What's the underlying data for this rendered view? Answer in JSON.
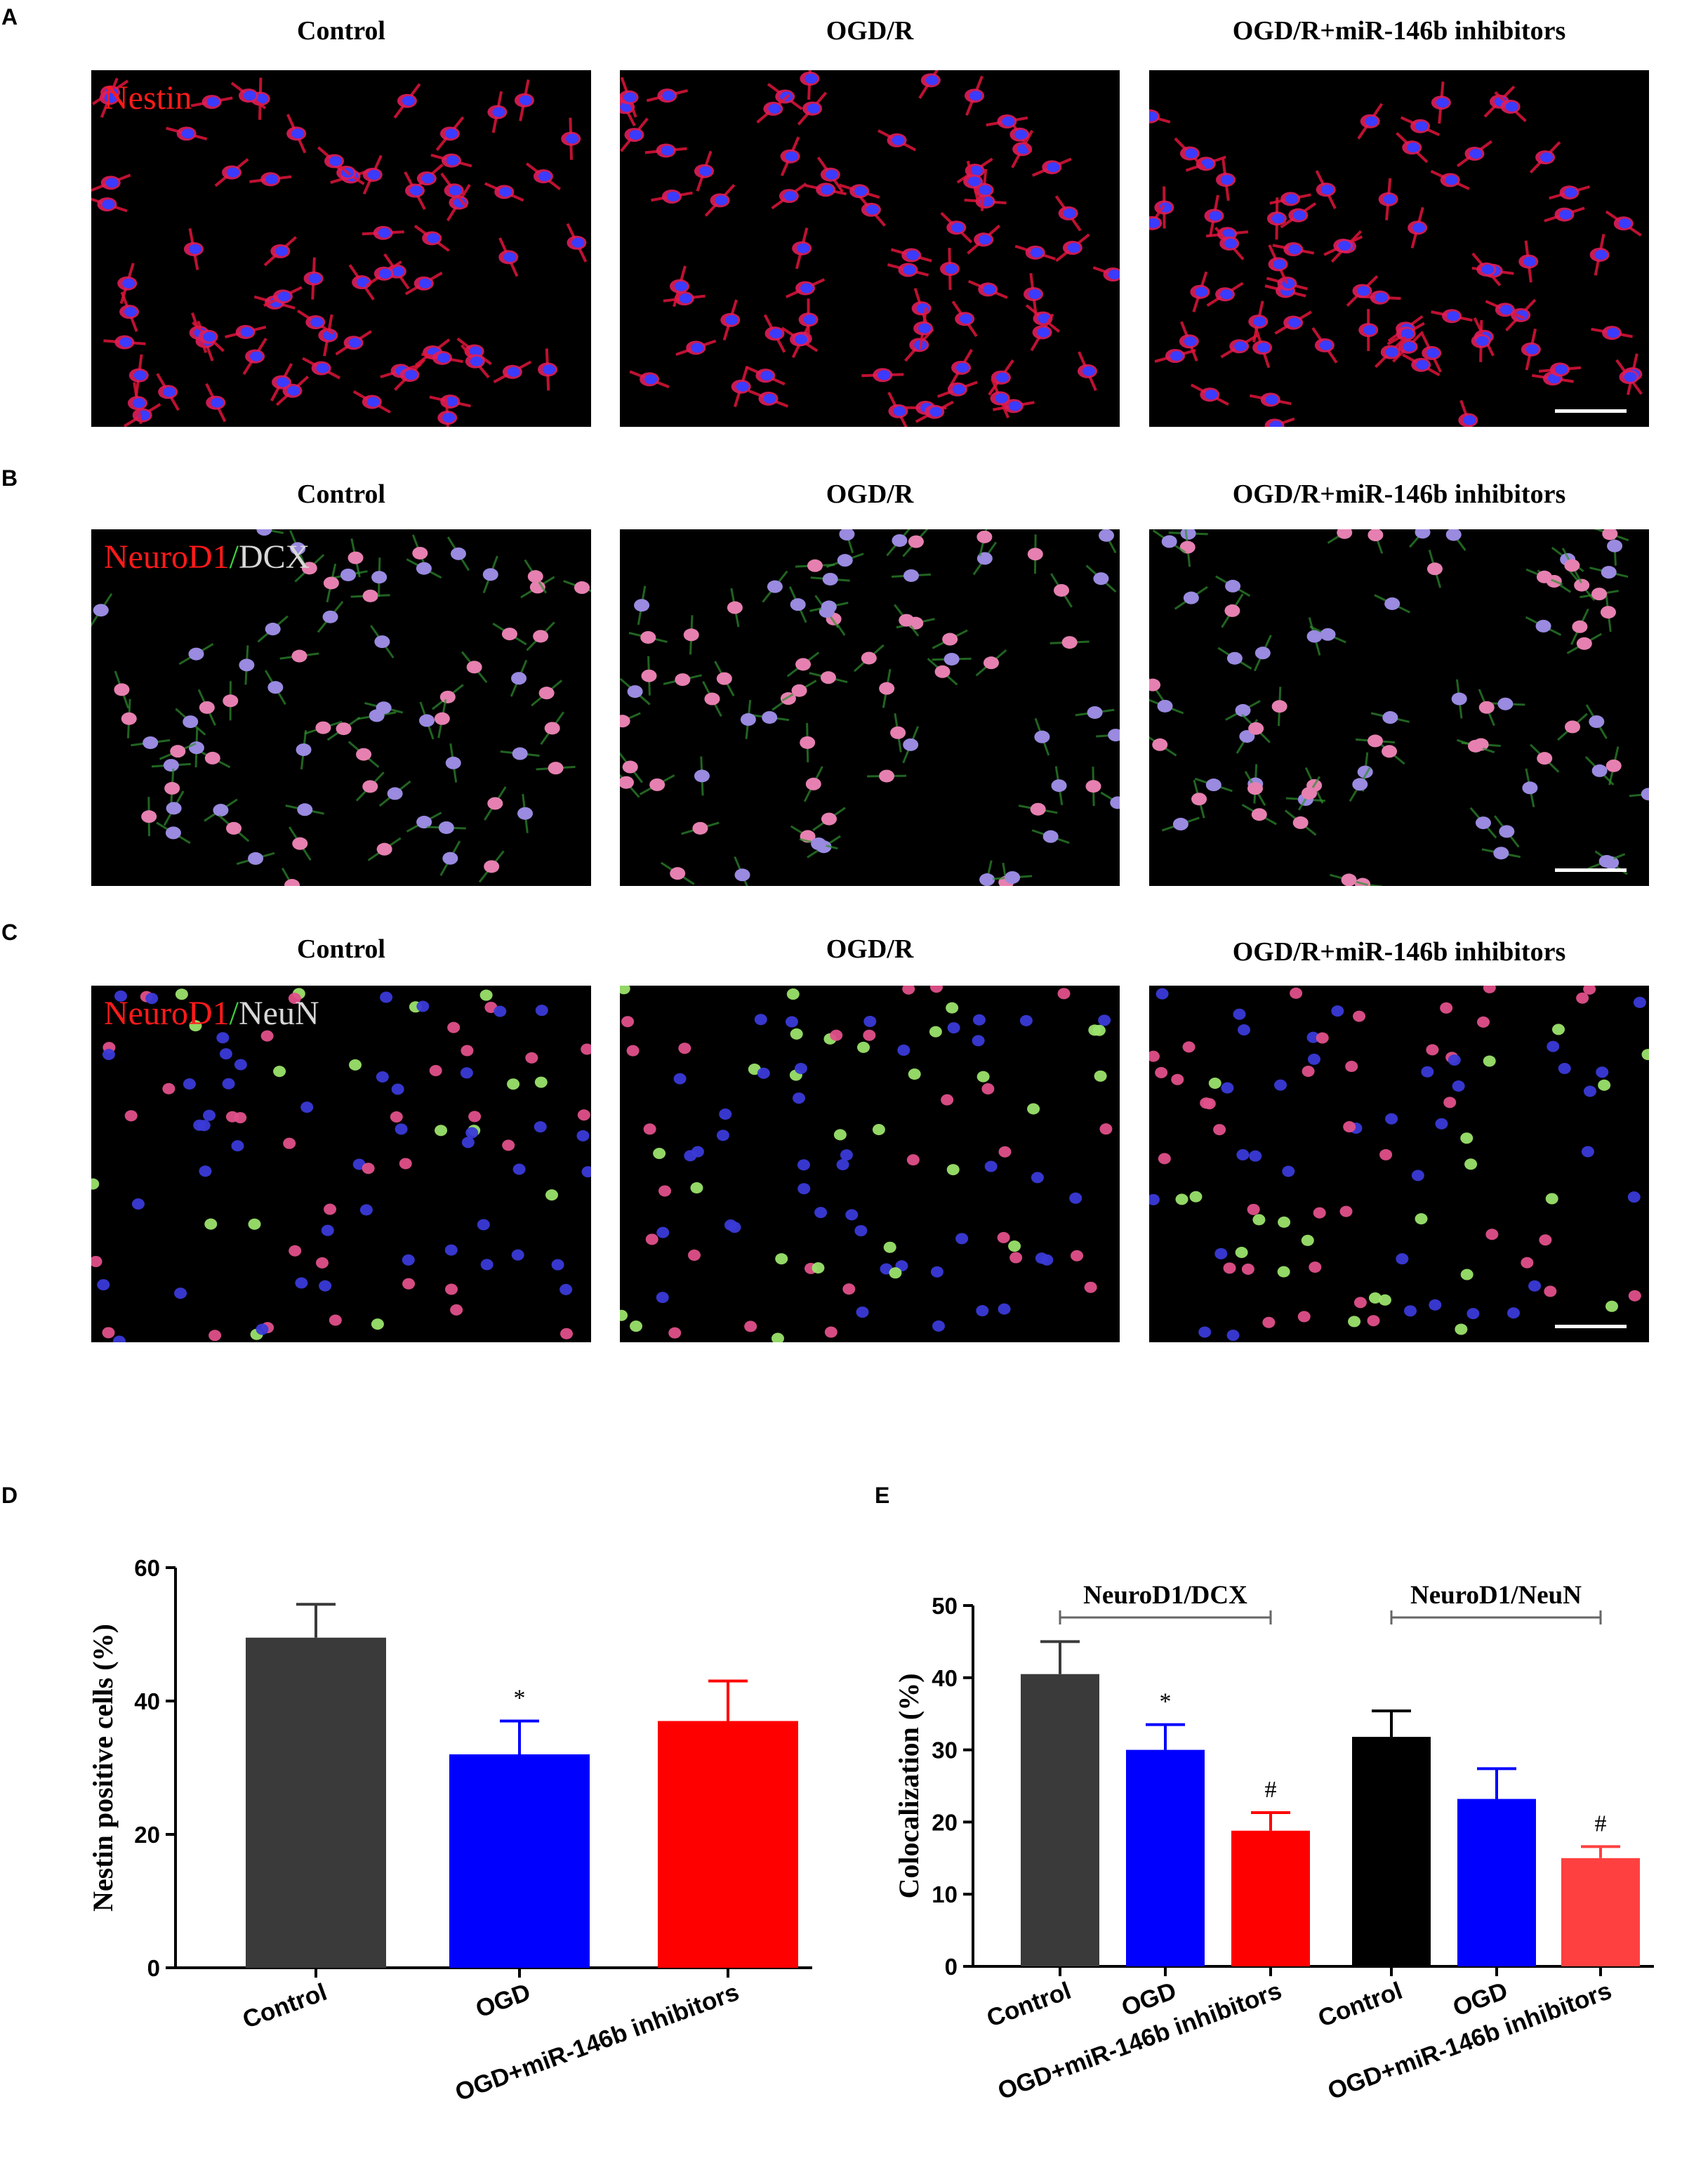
{
  "panels": {
    "A": {
      "letter": "A",
      "columns": [
        "Control",
        "OGD/R",
        "OGD/R+miR-146b inhibitors"
      ],
      "stain": [
        {
          "text": "Nestin",
          "color": "#ff1a1a"
        }
      ]
    },
    "B": {
      "letter": "B",
      "columns": [
        "Control",
        "OGD/R",
        "OGD/R+miR-146b inhibitors"
      ],
      "stain": [
        {
          "text": "NeuroD1",
          "color": "#ff1a1a"
        },
        {
          "text": "/",
          "color": "#3fd13f"
        },
        {
          "text": "DCX",
          "color": "#d8d8d8"
        }
      ]
    },
    "C": {
      "letter": "C",
      "columns": [
        "Control",
        "OGD/R",
        "OGD/R+miR-146b inhibitors"
      ],
      "stain": [
        {
          "text": "NeuroD1",
          "color": "#ff1a1a"
        },
        {
          "text": "/",
          "color": "#3fd13f"
        },
        {
          "text": "NeuN",
          "color": "#d8d8d8"
        }
      ]
    },
    "D": {
      "letter": "D"
    },
    "E": {
      "letter": "E"
    }
  },
  "chart_data": [
    {
      "id": "D",
      "type": "bar",
      "categories": [
        "Control",
        "OGD",
        "OGD+miR-146b inhibitors"
      ],
      "values": [
        49.5,
        32,
        37
      ],
      "errors": [
        5,
        5,
        6
      ],
      "colors": [
        "#3a3a3a",
        "#0000ff",
        "#ff0000"
      ],
      "significance": [
        "",
        "*",
        ""
      ],
      "ylabel": "Nestin positive cells (%)",
      "ylim": [
        0,
        60
      ],
      "yticks": [
        0,
        20,
        40,
        60
      ],
      "grid": false
    },
    {
      "id": "E",
      "type": "bar",
      "categories": [
        "Control",
        "OGD",
        "OGD+miR-146b inhibitors",
        "Control",
        "OGD",
        "OGD+miR-146b inhibitors"
      ],
      "groups": [
        {
          "label": "NeuroD1/DCX",
          "indices": [
            0,
            1,
            2
          ]
        },
        {
          "label": "NeuroD1/NeuN",
          "indices": [
            3,
            4,
            5
          ]
        }
      ],
      "values": [
        40.5,
        30,
        18.8,
        31.8,
        23.2,
        15
      ],
      "errors": [
        4.5,
        3.5,
        2.5,
        3.6,
        4.2,
        1.6
      ],
      "colors": [
        "#3a3a3a",
        "#0000ff",
        "#ff0000",
        "#000000",
        "#0000ff",
        "#ff4040"
      ],
      "significance": [
        "",
        "*",
        "#",
        "",
        "",
        "#"
      ],
      "ylabel": "Colocalization (%)",
      "ylim": [
        0,
        50
      ],
      "yticks": [
        0,
        10,
        20,
        30,
        40,
        50
      ],
      "grid": false
    }
  ]
}
